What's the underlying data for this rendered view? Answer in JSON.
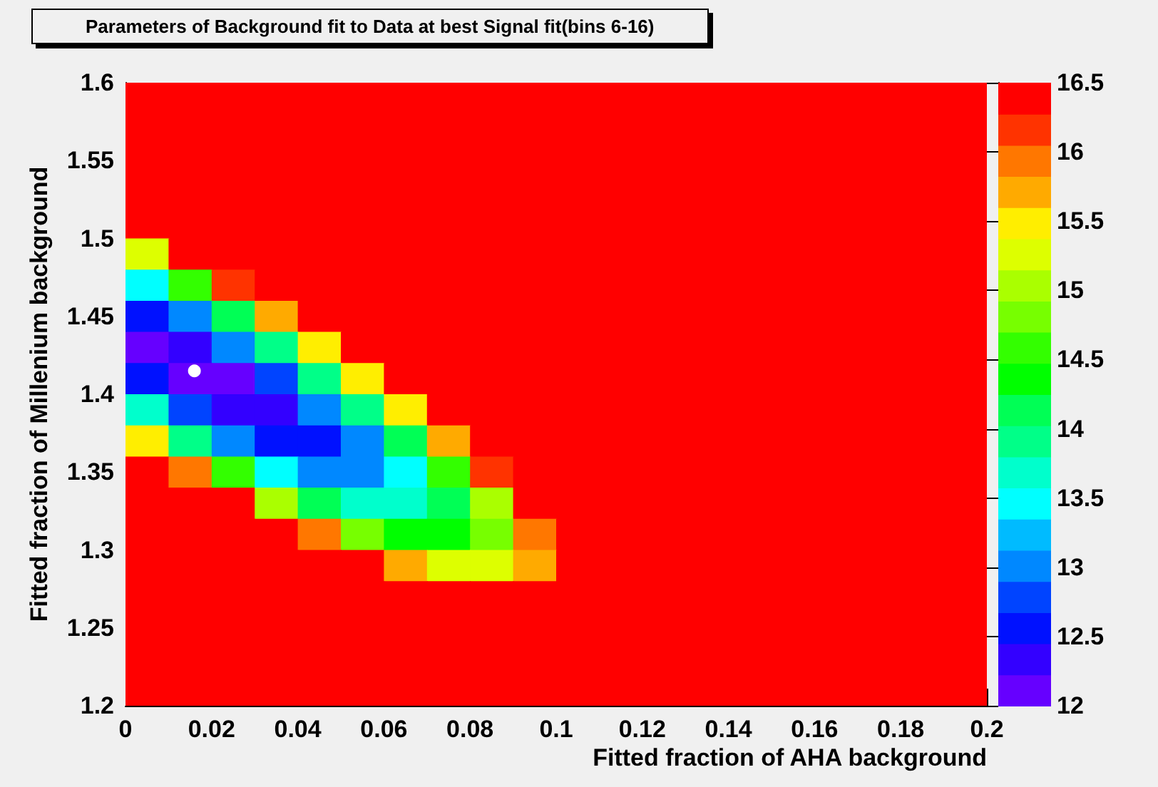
{
  "chart_data": {
    "type": "heatmap",
    "title": "Parameters of Background fit to Data at best Signal fit(bins 6-16)",
    "xlabel": "Fitted fraction of AHA background",
    "ylabel": "Fitted fraction of Millenium background",
    "xlim": [
      0,
      0.2
    ],
    "xticks": [
      0,
      0.02,
      0.04,
      0.06,
      0.08,
      0.1,
      0.12,
      0.14,
      0.16,
      0.18,
      0.2
    ],
    "ylim": [
      1.2,
      1.6
    ],
    "yticks": [
      1.2,
      1.25,
      1.3,
      1.35,
      1.4,
      1.45,
      1.5,
      1.55,
      1.6
    ],
    "clim": [
      12,
      16.5
    ],
    "cticks": [
      12,
      12.5,
      13,
      13.5,
      14,
      14.5,
      15,
      15.5,
      16,
      16.5
    ],
    "colors": [
      "#6600ff",
      "#3300ff",
      "#0011ff",
      "#0044ff",
      "#0088ff",
      "#00bbff",
      "#00ffff",
      "#00ffcc",
      "#00ff88",
      "#00ff55",
      "#00ff00",
      "#33ff00",
      "#77ff00",
      "#aaff00",
      "#ddff00",
      "#ffee00",
      "#ffaa00",
      "#ff7700",
      "#ff3300",
      "#ff0000"
    ],
    "grid": false,
    "cells": [
      [
        16.5,
        16.5,
        16.5,
        16.5,
        16.5,
        16.5,
        16.5,
        16.5,
        16.5,
        16.5,
        16.5,
        16.5,
        16.5,
        16.5,
        16.5,
        16.5,
        16.5,
        16.5,
        16.5,
        16.5
      ],
      [
        16.5,
        16.5,
        16.5,
        16.5,
        16.5,
        16.5,
        16.5,
        16.5,
        16.5,
        16.5,
        16.5,
        16.5,
        16.5,
        16.5,
        16.5,
        16.5,
        16.5,
        16.5,
        16.5,
        16.5
      ],
      [
        16.5,
        16.5,
        16.5,
        16.5,
        16.5,
        16.5,
        16.5,
        16.5,
        16.5,
        16.5,
        16.5,
        16.5,
        16.5,
        16.5,
        16.5,
        16.5,
        16.5,
        16.5,
        16.5,
        16.5
      ],
      [
        16.5,
        16.5,
        16.5,
        16.5,
        16.5,
        16.5,
        16.5,
        16.5,
        16.5,
        16.5,
        16.5,
        16.5,
        16.5,
        16.5,
        16.5,
        16.5,
        16.5,
        16.5,
        16.5,
        16.5
      ],
      [
        16.5,
        16.5,
        16.5,
        16.5,
        16.5,
        16.5,
        16.5,
        16.5,
        16.5,
        16.5,
        16.5,
        16.5,
        16.5,
        16.5,
        16.5,
        16.5,
        16.5,
        16.5,
        16.5,
        16.5
      ],
      [
        15.2,
        16.5,
        16.5,
        16.5,
        16.5,
        16.5,
        16.5,
        16.5,
        16.5,
        16.5,
        16.5,
        16.5,
        16.5,
        16.5,
        16.5,
        16.5,
        16.5,
        16.5,
        16.5,
        16.5
      ],
      [
        13.5,
        14.6,
        16.2,
        16.5,
        16.5,
        16.5,
        16.5,
        16.5,
        16.5,
        16.5,
        16.5,
        16.5,
        16.5,
        16.5,
        16.5,
        16.5,
        16.5,
        16.5,
        16.5,
        16.5
      ],
      [
        12.5,
        13.1,
        14.2,
        15.8,
        16.5,
        16.5,
        16.5,
        16.5,
        16.5,
        16.5,
        16.5,
        16.5,
        16.5,
        16.5,
        16.5,
        16.5,
        16.5,
        16.5,
        16.5,
        16.5
      ],
      [
        12.2,
        12.3,
        12.9,
        13.9,
        15.5,
        16.5,
        16.5,
        16.5,
        16.5,
        16.5,
        16.5,
        16.5,
        16.5,
        16.5,
        16.5,
        16.5,
        16.5,
        16.5,
        16.5,
        16.5
      ],
      [
        12.6,
        12.1,
        12.2,
        12.8,
        13.9,
        15.4,
        16.5,
        16.5,
        16.5,
        16.5,
        16.5,
        16.5,
        16.5,
        16.5,
        16.5,
        16.5,
        16.5,
        16.5,
        16.5,
        16.5
      ],
      [
        13.7,
        12.7,
        12.3,
        12.3,
        12.9,
        13.9,
        15.5,
        16.5,
        16.5,
        16.5,
        16.5,
        16.5,
        16.5,
        16.5,
        16.5,
        16.5,
        16.5,
        16.5,
        16.5,
        16.5
      ],
      [
        15.5,
        14.0,
        13.0,
        12.5,
        12.6,
        13.1,
        14.2,
        15.7,
        16.5,
        16.5,
        16.5,
        16.5,
        16.5,
        16.5,
        16.5,
        16.5,
        16.5,
        16.5,
        16.5,
        16.5
      ],
      [
        16.5,
        16.0,
        14.5,
        13.5,
        13.0,
        13.0,
        13.5,
        14.6,
        16.1,
        16.5,
        16.5,
        16.5,
        16.5,
        16.5,
        16.5,
        16.5,
        16.5,
        16.5,
        16.5,
        16.5
      ],
      [
        16.5,
        16.5,
        16.5,
        15.1,
        14.1,
        13.6,
        13.6,
        14.1,
        15.1,
        16.5,
        16.5,
        16.5,
        16.5,
        16.5,
        16.5,
        16.5,
        16.5,
        16.5,
        16.5,
        16.5
      ],
      [
        16.5,
        16.5,
        16.5,
        16.5,
        15.9,
        14.9,
        14.4,
        14.4,
        14.9,
        15.9,
        16.5,
        16.5,
        16.5,
        16.5,
        16.5,
        16.5,
        16.5,
        16.5,
        16.5,
        16.5
      ],
      [
        16.5,
        16.5,
        16.5,
        16.5,
        16.5,
        16.5,
        15.8,
        15.3,
        15.3,
        15.7,
        16.5,
        16.5,
        16.5,
        16.5,
        16.5,
        16.5,
        16.5,
        16.5,
        16.5,
        16.5
      ],
      [
        16.5,
        16.5,
        16.5,
        16.5,
        16.5,
        16.5,
        16.5,
        16.5,
        16.4,
        16.3,
        16.5,
        16.5,
        16.5,
        16.5,
        16.5,
        16.5,
        16.5,
        16.5,
        16.5,
        16.5
      ],
      [
        16.5,
        16.5,
        16.5,
        16.5,
        16.5,
        16.5,
        16.5,
        16.5,
        16.5,
        16.5,
        16.5,
        16.5,
        16.5,
        16.5,
        16.5,
        16.5,
        16.5,
        16.5,
        16.5,
        16.5
      ],
      [
        16.5,
        16.5,
        16.5,
        16.5,
        16.5,
        16.5,
        16.5,
        16.5,
        16.5,
        16.5,
        16.5,
        16.5,
        16.5,
        16.5,
        16.5,
        16.5,
        16.5,
        16.5,
        16.5,
        16.5
      ],
      [
        16.5,
        16.5,
        16.5,
        16.5,
        16.5,
        16.5,
        16.5,
        16.5,
        16.5,
        16.5,
        16.5,
        16.5,
        16.5,
        16.5,
        16.5,
        16.5,
        16.5,
        16.5,
        16.5,
        16.5
      ]
    ],
    "series": [
      {
        "type": "scatter",
        "x": [
          0.016
        ],
        "values": [
          1.415
        ],
        "color": "#ffffff",
        "marker": "circle"
      }
    ]
  }
}
